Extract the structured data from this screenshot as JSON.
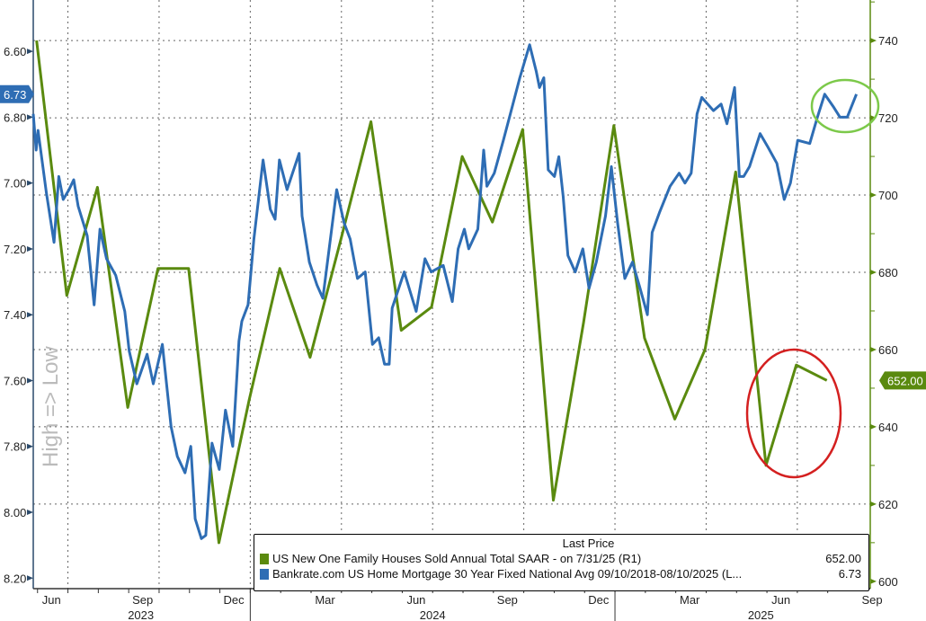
{
  "chart_data": {
    "type": "line",
    "title": "",
    "left_axis_label": "High => Low",
    "xlim": [
      2023.405,
      2025.7
    ],
    "x_units": "decimal year",
    "x_tick_labels": [
      "Jun",
      "Sep",
      "Dec",
      "Mar",
      "Jun",
      "Sep",
      "Dec",
      "Mar",
      "Jun",
      "Sep"
    ],
    "x_tick_positions": [
      2023.455,
      2023.705,
      2023.955,
      2024.205,
      2024.455,
      2024.705,
      2024.955,
      2025.205,
      2025.455,
      2025.705
    ],
    "year_labels": [
      "2023",
      "2024",
      "2025"
    ],
    "year_positions": [
      2023.7,
      2024.5,
      2025.4
    ],
    "left_axis": {
      "ylim": [
        6.444,
        8.232
      ],
      "inverted": true,
      "ticks": [
        "6.60",
        "6.80",
        "7.00",
        "7.20",
        "7.40",
        "7.60",
        "7.80",
        "8.00",
        "8.20"
      ]
    },
    "right_axis": {
      "ylim": [
        598.1,
        750.5
      ],
      "ticks": [
        "740",
        "720",
        "700",
        "680",
        "660",
        "640",
        "620",
        "600"
      ]
    },
    "grid": true,
    "legend": {
      "header": "Last Price",
      "placement": "bottom-right",
      "entries": [
        {
          "label": "US New One Family Houses Sold Annual Total SAAR -  on 7/31/25  (R1)",
          "value": "652.00",
          "color": "#5a8a0f"
        },
        {
          "label": "Bankrate.com US Home Mortgage 30 Year Fixed National Avg 09/10/2018-08/10/2025   (L...",
          "value": "6.73",
          "color": "#2e6db4"
        }
      ]
    },
    "last_value_tags": {
      "left": "6.73",
      "right": "652.00"
    },
    "series": [
      {
        "name": "US New One Family Houses Sold Annual Total SAAR",
        "axis": "right",
        "color": "#5a8a0f",
        "x": [
          2023.414,
          2023.497,
          2023.581,
          2023.664,
          2023.747,
          2023.831,
          2023.914,
          2023.997,
          2024.081,
          2024.164,
          2024.247,
          2024.331,
          2024.414,
          2024.497,
          2024.581,
          2024.664,
          2024.747,
          2024.831,
          2024.914,
          2024.997,
          2025.081,
          2025.164,
          2025.247,
          2025.331,
          2025.414,
          2025.497,
          2025.581
        ],
        "values": [
          740,
          674,
          702,
          645,
          681,
          681,
          610,
          647,
          681,
          658,
          688,
          719,
          665,
          671,
          710,
          693,
          717,
          621,
          667,
          718,
          663,
          642,
          660,
          706,
          630,
          656,
          652
        ]
      },
      {
        "name": "Bankrate.com US Home Mortgage 30 Year Fixed National Avg",
        "axis": "left",
        "color": "#2e6db4",
        "x": [
          2023.405,
          2023.413,
          2023.418,
          2023.441,
          2023.462,
          2023.475,
          2023.487,
          2023.503,
          2023.516,
          2023.528,
          2023.553,
          2023.572,
          2023.588,
          2023.606,
          2023.631,
          2023.656,
          2023.668,
          2023.689,
          2023.717,
          2023.734,
          2023.759,
          2023.783,
          2023.8,
          2023.821,
          2023.837,
          2023.849,
          2023.866,
          2023.878,
          2023.895,
          2023.915,
          2023.932,
          2023.952,
          2023.969,
          2023.977,
          2023.994,
          2024.01,
          2024.035,
          2024.055,
          2024.068,
          2024.08,
          2024.101,
          2024.134,
          2024.142,
          2024.162,
          2024.183,
          2024.199,
          2024.237,
          2024.257,
          2024.274,
          2024.294,
          2024.315,
          2024.335,
          2024.352,
          2024.368,
          2024.381,
          2024.389,
          2024.422,
          2024.455,
          2024.479,
          2024.496,
          2024.529,
          2024.554,
          2024.57,
          2024.587,
          2024.599,
          2024.624,
          2024.64,
          2024.649,
          2024.669,
          2024.694,
          2024.718,
          2024.739,
          2024.766,
          2024.784,
          2024.793,
          2024.805,
          2024.817,
          2024.834,
          2024.846,
          2024.858,
          2024.871,
          2024.891,
          2024.912,
          2024.929,
          2024.949,
          2024.974,
          2024.99,
          2025.007,
          2025.027,
          2025.048,
          2025.069,
          2025.089,
          2025.102,
          2025.122,
          2025.151,
          2025.176,
          2025.192,
          2025.209,
          2025.225,
          2025.238,
          2025.27,
          2025.291,
          2025.307,
          2025.328,
          2025.341,
          2025.353,
          2025.369,
          2025.398,
          2025.419,
          2025.444,
          2025.464,
          2025.481,
          2025.501,
          2025.534,
          2025.555,
          2025.575,
          2025.6,
          2025.617,
          2025.637,
          2025.662
        ],
        "values": [
          6.79,
          6.9,
          6.84,
          7.03,
          7.18,
          6.98,
          7.05,
          7.02,
          6.99,
          7.07,
          7.16,
          7.37,
          7.14,
          7.23,
          7.28,
          7.39,
          7.51,
          7.61,
          7.52,
          7.61,
          7.49,
          7.74,
          7.83,
          7.88,
          7.8,
          8.02,
          8.08,
          8.07,
          7.79,
          7.87,
          7.69,
          7.8,
          7.48,
          7.42,
          7.37,
          7.17,
          6.93,
          7.08,
          7.11,
          6.93,
          7.02,
          6.91,
          7.1,
          7.24,
          7.31,
          7.35,
          7.02,
          7.12,
          7.17,
          7.29,
          7.27,
          7.49,
          7.47,
          7.55,
          7.55,
          7.38,
          7.27,
          7.39,
          7.23,
          7.27,
          7.25,
          7.36,
          7.2,
          7.14,
          7.2,
          7.14,
          6.9,
          7.01,
          6.97,
          6.87,
          6.77,
          6.68,
          6.58,
          6.66,
          6.71,
          6.68,
          6.96,
          6.98,
          6.92,
          7.04,
          7.22,
          7.27,
          7.2,
          7.32,
          7.24,
          7.1,
          6.95,
          7.12,
          7.29,
          7.24,
          7.32,
          7.4,
          7.15,
          7.09,
          7.01,
          6.97,
          7.0,
          6.97,
          6.79,
          6.74,
          6.78,
          6.76,
          6.82,
          6.71,
          6.98,
          6.98,
          6.95,
          6.85,
          6.89,
          6.94,
          7.05,
          7.0,
          6.87,
          6.88,
          6.8,
          6.73,
          6.77,
          6.8,
          6.8,
          6.73
        ]
      }
    ],
    "annotations": [
      {
        "shape": "ellipse",
        "color": "#7cc94a",
        "around": "mortgage rate Jun-Aug 2025"
      },
      {
        "shape": "ellipse",
        "color": "#d42020",
        "around": "new home sales May-Jul 2025"
      }
    ]
  }
}
